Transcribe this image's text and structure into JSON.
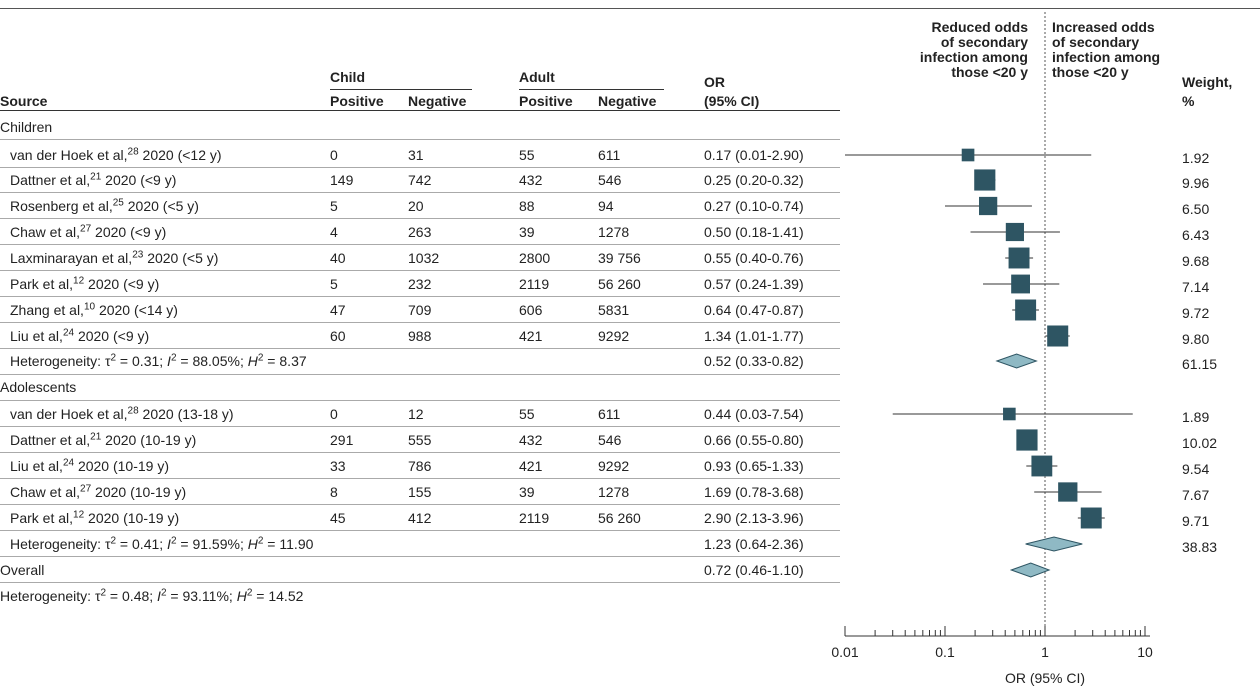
{
  "header": {
    "child": "Child",
    "adult": "Adult",
    "source": "Source",
    "child_positive": "Positive",
    "child_negative": "Negative",
    "adult_positive": "Positive",
    "adult_negative": "Negative",
    "or_line1": "OR",
    "or_line2": "(95% CI)",
    "reduced": [
      "Reduced odds",
      "of secondary",
      "infection among",
      "those <20 y"
    ],
    "increased": [
      "Increased odds",
      "of secondary",
      "infection among",
      "those <20 y"
    ],
    "weight_line1": "Weight,",
    "weight_line2": "%"
  },
  "groups": {
    "children_label": "Children",
    "adolescents_label": "Adolescents",
    "overall_label": "Overall"
  },
  "rows": [
    {
      "author": "van der Hoek et al,",
      "ref": "28",
      "suffix": " 2020  (<12 y)",
      "cp": "0",
      "cn": "31",
      "ap": "55",
      "an": "611",
      "or_text": "0.17 (0.01-2.90)",
      "weight": "1.92"
    },
    {
      "author": "Dattner et al,",
      "ref": "21",
      "suffix": " 2020 (<9 y)",
      "cp": "149",
      "cn": "742",
      "ap": "432",
      "an": "546",
      "or_text": "0.25 (0.20-0.32)",
      "weight": "9.96"
    },
    {
      "author": "Rosenberg et al,",
      "ref": "25",
      "suffix": " 2020 (<5 y)",
      "cp": "5",
      "cn": "20",
      "ap": "88",
      "an": "94",
      "or_text": "0.27 (0.10-0.74)",
      "weight": "6.50"
    },
    {
      "author": "Chaw et al,",
      "ref": "27",
      "suffix": " 2020 (<9 y)",
      "cp": "4",
      "cn": "263",
      "ap": "39",
      "an": "1278",
      "or_text": "0.50 (0.18-1.41)",
      "weight": "6.43"
    },
    {
      "author": "Laxminarayan et al,",
      "ref": "23",
      "suffix": " 2020 (<5 y)",
      "cp": "40",
      "cn": "1032",
      "ap": "2800",
      "an": "39 756",
      "or_text": "0.55 (0.40-0.76)",
      "weight": "9.68"
    },
    {
      "author": "Park et al,",
      "ref": "12",
      "suffix": " 2020 (<9 y)",
      "cp": "5",
      "cn": "232",
      "ap": "2119",
      "an": "56 260",
      "or_text": "0.57 (0.24-1.39)",
      "weight": "7.14"
    },
    {
      "author": "Zhang et al,",
      "ref": "10",
      "suffix": " 2020 (<14 y)",
      "cp": "47",
      "cn": "709",
      "ap": "606",
      "an": "5831",
      "or_text": "0.64 (0.47-0.87)",
      "weight": "9.72"
    },
    {
      "author": "Liu et al,",
      "ref": "24",
      "suffix": " 2020 (<9 y)",
      "cp": "60",
      "cn": "988",
      "ap": "421",
      "an": "9292",
      "or_text": "1.34 (1.01-1.77)",
      "weight": "9.80"
    },
    {
      "author": "van der Hoek et al,",
      "ref": "28",
      "suffix": " 2020 (13-18 y)",
      "cp": "0",
      "cn": "12",
      "ap": "55",
      "an": "611",
      "or_text": "0.44 (0.03-7.54)",
      "weight": "1.89"
    },
    {
      "author": "Dattner et al,",
      "ref": "21",
      "suffix": " 2020 (10-19 y)",
      "cp": "291",
      "cn": "555",
      "ap": "432",
      "an": "546",
      "or_text": "0.66 (0.55-0.80)",
      "weight": "10.02"
    },
    {
      "author": "Liu et al,",
      "ref": "24",
      "suffix": " 2020 (10-19 y)",
      "cp": "33",
      "cn": "786",
      "ap": "421",
      "an": "9292",
      "or_text": "0.93 (0.65-1.33)",
      "weight": "9.54"
    },
    {
      "author": "Chaw et al,",
      "ref": "27",
      "suffix": " 2020 (10-19 y)",
      "cp": "8",
      "cn": "155",
      "ap": "39",
      "an": "1278",
      "or_text": "1.69 (0.78-3.68)",
      "weight": "7.67"
    },
    {
      "author": "Park et al,",
      "ref": "12",
      "suffix": " 2020 (10-19 y)",
      "cp": "45",
      "cn": "412",
      "ap": "2119",
      "an": "56 260",
      "or_text": "2.90 (2.13-3.96)",
      "weight": "9.71"
    }
  ],
  "summaries": [
    {
      "label": "Heterogeneity: τ² = 0.31; I² = 88.05%; H² = 8.37",
      "tau": "0.31",
      "i2": "88.05%",
      "h2": "8.37",
      "or_text": "0.52 (0.33-0.82)",
      "weight": "61.15"
    },
    {
      "label": "Heterogeneity: τ² = 0.41; I² = 91.59%; H² = 11.90",
      "tau": "0.41",
      "i2": "91.59%",
      "h2": "11.90",
      "or_text": "1.23 (0.64-2.36)",
      "weight": "38.83"
    },
    {
      "label": "",
      "tau": "",
      "i2": "",
      "h2": "",
      "or_text": "0.72 (0.46-1.10)",
      "weight": ""
    }
  ],
  "overall_het": {
    "tau": "0.48",
    "i2": "93.11%",
    "h2": "14.52"
  },
  "chart_data": {
    "type": "scatter",
    "xscale": "log",
    "xlim": [
      0.01,
      10
    ],
    "xticks": [
      "0.01",
      "0.1",
      "1",
      "10"
    ],
    "xlabel": "OR (95% CI)",
    "reference_line": 1,
    "studies": [
      {
        "or": 0.17,
        "lo": 0.01,
        "hi": 2.9,
        "weight": 1.92
      },
      {
        "or": 0.25,
        "lo": 0.2,
        "hi": 0.32,
        "weight": 9.96
      },
      {
        "or": 0.27,
        "lo": 0.1,
        "hi": 0.74,
        "weight": 6.5
      },
      {
        "or": 0.5,
        "lo": 0.18,
        "hi": 1.41,
        "weight": 6.43
      },
      {
        "or": 0.55,
        "lo": 0.4,
        "hi": 0.76,
        "weight": 9.68
      },
      {
        "or": 0.57,
        "lo": 0.24,
        "hi": 1.39,
        "weight": 7.14
      },
      {
        "or": 0.64,
        "lo": 0.47,
        "hi": 0.87,
        "weight": 9.72
      },
      {
        "or": 1.34,
        "lo": 1.01,
        "hi": 1.77,
        "weight": 9.8
      },
      {
        "or": 0.44,
        "lo": 0.03,
        "hi": 7.54,
        "weight": 1.89
      },
      {
        "or": 0.66,
        "lo": 0.55,
        "hi": 0.8,
        "weight": 10.02
      },
      {
        "or": 0.93,
        "lo": 0.65,
        "hi": 1.33,
        "weight": 9.54
      },
      {
        "or": 1.69,
        "lo": 0.78,
        "hi": 3.68,
        "weight": 7.67
      },
      {
        "or": 2.9,
        "lo": 2.13,
        "hi": 3.96,
        "weight": 9.71
      }
    ],
    "diamonds": [
      {
        "or": 0.52,
        "lo": 0.33,
        "hi": 0.82
      },
      {
        "or": 1.23,
        "lo": 0.64,
        "hi": 2.36
      },
      {
        "or": 0.72,
        "lo": 0.46,
        "hi": 1.1
      }
    ],
    "colors": {
      "box": "#2e5563",
      "diamond": "#8fb9c4",
      "diamond_stroke": "#2e5563",
      "line": "#333333"
    }
  }
}
